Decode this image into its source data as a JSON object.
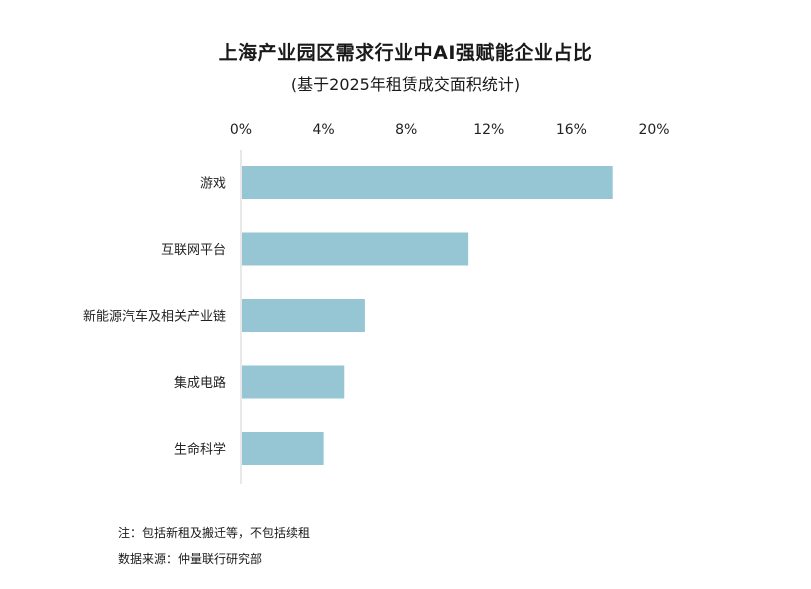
{
  "chart_data": {
    "type": "bar",
    "orientation": "horizontal",
    "title": "上海产业园区需求行业中AI强赋能企业占比",
    "subtitle": "(基于2025年租赁成交面积统计)",
    "categories": [
      "游戏",
      "互联网平台",
      "新能源汽车及相关产业链",
      "集成电路",
      "生命科学"
    ],
    "values": [
      18,
      11,
      6,
      5,
      4
    ],
    "unit": "%",
    "xlim": [
      0,
      20
    ],
    "xticks": [
      "0%",
      "4%",
      "8%",
      "12%",
      "16%",
      "20%"
    ],
    "xtick_values": [
      0,
      4,
      8,
      12,
      16,
      20
    ],
    "axis_position": "top",
    "grid": false,
    "bar_color": "#96c5d4"
  },
  "notes": {
    "note": "注：包括新租及搬迁等，不包括续租",
    "source": "数据来源：仲量联行研究部"
  }
}
